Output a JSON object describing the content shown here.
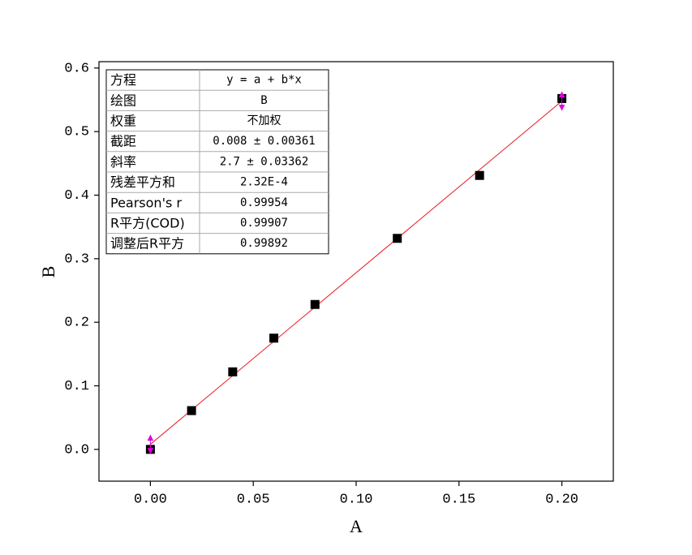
{
  "chart_data": {
    "type": "scatter",
    "x_label": "A",
    "y_label": "B",
    "x": [
      0,
      0.02,
      0.04,
      0.06,
      0.08,
      0.12,
      0.16,
      0.2
    ],
    "values": [
      0,
      0.061,
      0.122,
      0.175,
      0.228,
      0.332,
      0.431,
      0.552
    ],
    "color": "#000000",
    "fit_line": {
      "x": [
        0,
        0.2
      ],
      "values": [
        0.008,
        0.548
      ],
      "color": "#e8161e",
      "end_color": "#e000e0"
    },
    "xlim": [
      -0.025,
      0.225
    ],
    "ylim": [
      -0.05,
      0.61
    ],
    "xticks": [
      {
        "value": 0,
        "label": "0.00"
      },
      {
        "value": 0.05,
        "label": "0.05"
      },
      {
        "value": 0.1,
        "label": "0.10"
      },
      {
        "value": 0.15,
        "label": "0.15"
      },
      {
        "value": 0.2,
        "label": "0.20"
      }
    ],
    "yticks": [
      {
        "value": 0,
        "label": "0.0"
      },
      0.1,
      0.2,
      0.3,
      0.4,
      0.5,
      0.6
    ],
    "grid": false,
    "stats_table": [
      [
        "方程",
        "y = a + b*x"
      ],
      [
        "绘图",
        "B"
      ],
      [
        "权重",
        "不加权"
      ],
      [
        "截距",
        "0.008 ± 0.00361"
      ],
      [
        "斜率",
        "2.7 ± 0.03362"
      ],
      [
        "残差平方和",
        "2.32E-4"
      ],
      [
        "Pearson's r",
        "0.99954"
      ],
      [
        "R平方(COD)",
        "0.99907"
      ],
      [
        "调整后R平方",
        "0.99892"
      ]
    ]
  }
}
